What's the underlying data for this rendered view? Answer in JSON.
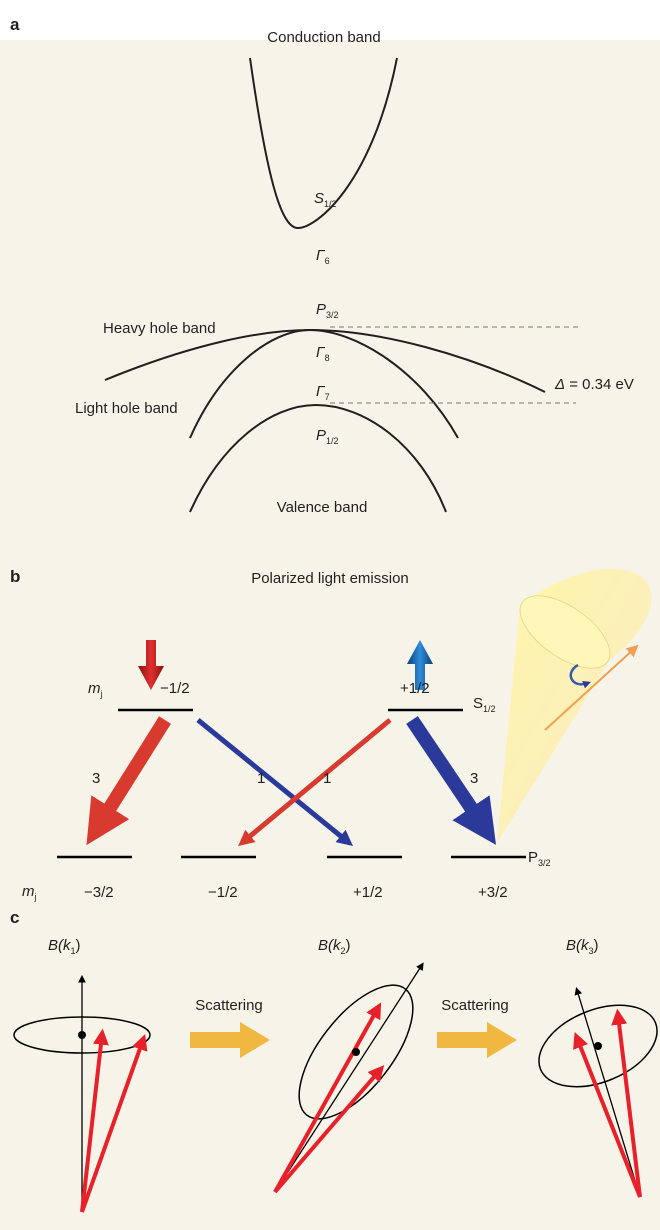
{
  "panel_a": {
    "label": "a",
    "conduction_band": "Conduction band",
    "s_level": {
      "symbol": "S",
      "sub": "1/2"
    },
    "gamma6": {
      "symbol": "Γ",
      "sub": "6"
    },
    "p32_level": {
      "symbol": "P",
      "sub": "3/2"
    },
    "heavy_hole_band": "Heavy hole band",
    "gamma8": {
      "symbol": "Γ",
      "sub": "8"
    },
    "delta": {
      "symbol": "Δ",
      "text": " = 0.34 eV"
    },
    "gamma7": {
      "symbol": "Γ",
      "sub": "7"
    },
    "light_hole_band": "Light hole band",
    "p12_level": {
      "symbol": "P",
      "sub": "1/2"
    },
    "valence_band": "Valence band"
  },
  "panel_b": {
    "label": "b",
    "title": "Polarized light emission",
    "mj_top": {
      "symbol": "m",
      "sub": "j"
    },
    "top_levels": [
      "−1/2",
      "+1/2"
    ],
    "s_level": {
      "symbol": "S",
      "sub": "1/2"
    },
    "transition_weights": [
      "3",
      "1",
      "1",
      "3"
    ],
    "p_level": {
      "symbol": "P",
      "sub": "3/2"
    },
    "mj_bottom": {
      "symbol": "m",
      "sub": "j"
    },
    "bottom_levels": [
      "−3/2",
      "−1/2",
      "+1/2",
      "+3/2"
    ]
  },
  "panel_c": {
    "label": "c",
    "fields": [
      {
        "prefix": "B(k",
        "sub": "1",
        "suffix": ")"
      },
      {
        "prefix": "B(k",
        "sub": "2",
        "suffix": ")"
      },
      {
        "prefix": "B(k",
        "sub": "3",
        "suffix": ")"
      }
    ],
    "steps": [
      "Scattering",
      "Scattering"
    ]
  }
}
